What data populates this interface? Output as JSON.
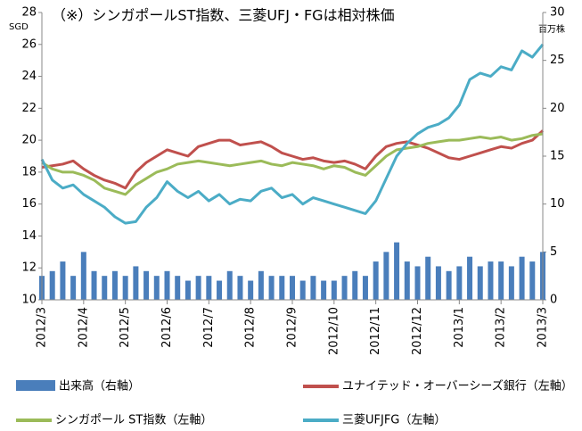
{
  "chart_data": {
    "type": "line",
    "title": "（※）シンガポールST指数、三菱UFJ・FGは相対株価",
    "y_label": "SGD",
    "y2_label": "百万株",
    "categories": [
      "2012/3",
      null,
      null,
      null,
      "2012/4",
      null,
      null,
      null,
      "2012/5",
      null,
      null,
      null,
      "2012/6",
      null,
      null,
      null,
      "2012/7",
      null,
      null,
      null,
      "2012/8",
      null,
      null,
      null,
      "2012/9",
      null,
      null,
      null,
      "2012/10",
      null,
      null,
      null,
      "2012/11",
      null,
      null,
      null,
      "2012/12",
      null,
      null,
      null,
      "2013/1",
      null,
      null,
      null,
      "2013/2",
      null,
      null,
      null,
      "2013/3"
    ],
    "ylim": [
      10,
      28
    ],
    "yticks": [
      10,
      12,
      14,
      16,
      18,
      20,
      22,
      24,
      26,
      28
    ],
    "y2lim": [
      0,
      30
    ],
    "y2ticks": [
      0,
      5,
      10,
      15,
      20,
      25,
      30
    ],
    "series": [
      {
        "name": "出来高（右軸）",
        "type": "bar",
        "axis": "y2",
        "color": "#4a7ebb",
        "values": [
          2.5,
          3,
          4,
          2.5,
          5,
          3,
          2.5,
          3,
          2.5,
          3.5,
          3,
          2.5,
          3,
          2.5,
          2,
          2.5,
          2.5,
          2,
          3,
          2.5,
          2,
          3,
          2.5,
          2.5,
          2.5,
          2,
          2.5,
          2,
          2,
          2.5,
          3,
          2.5,
          4,
          5,
          6,
          4,
          3.5,
          4.5,
          3.5,
          3,
          3.5,
          4.5,
          3.5,
          4,
          4,
          3.5,
          4.5,
          4,
          5
        ]
      },
      {
        "name": "ユナイテッド・オーバーシーズ銀行（左軸）",
        "type": "line",
        "axis": "y",
        "color": "#c0504d",
        "values": [
          18.3,
          18.4,
          18.5,
          18.7,
          18.2,
          17.8,
          17.5,
          17.3,
          17.0,
          18.0,
          18.6,
          19.0,
          19.4,
          19.2,
          19.0,
          19.6,
          19.8,
          20.0,
          20.0,
          19.7,
          19.8,
          19.9,
          19.6,
          19.2,
          19.0,
          18.8,
          18.9,
          18.7,
          18.6,
          18.7,
          18.5,
          18.2,
          19.0,
          19.6,
          19.8,
          19.9,
          19.7,
          19.5,
          19.2,
          18.9,
          18.8,
          19.0,
          19.2,
          19.4,
          19.6,
          19.5,
          19.8,
          20.0,
          20.6
        ]
      },
      {
        "name": "シンガポール ST指数（左軸）",
        "type": "line",
        "axis": "y",
        "color": "#9bbb59",
        "values": [
          18.6,
          18.2,
          18.0,
          18.0,
          17.8,
          17.5,
          17.0,
          16.8,
          16.6,
          17.2,
          17.6,
          18.0,
          18.2,
          18.5,
          18.6,
          18.7,
          18.6,
          18.5,
          18.4,
          18.5,
          18.6,
          18.7,
          18.5,
          18.4,
          18.6,
          18.5,
          18.4,
          18.2,
          18.4,
          18.3,
          18.0,
          17.8,
          18.4,
          19.0,
          19.4,
          19.5,
          19.6,
          19.8,
          19.9,
          20.0,
          20.0,
          20.1,
          20.2,
          20.1,
          20.2,
          20.0,
          20.1,
          20.3,
          20.4
        ]
      },
      {
        "name": "三菱UFJFG（左軸）",
        "type": "line",
        "axis": "y",
        "color": "#4bacc6",
        "values": [
          18.8,
          17.5,
          17.0,
          17.2,
          16.6,
          16.2,
          15.8,
          15.2,
          14.8,
          14.9,
          15.8,
          16.4,
          17.4,
          16.8,
          16.4,
          16.8,
          16.2,
          16.6,
          16.0,
          16.3,
          16.2,
          16.8,
          17.0,
          16.4,
          16.6,
          16.0,
          16.4,
          16.2,
          16.0,
          15.8,
          15.6,
          15.4,
          16.2,
          17.6,
          19.0,
          19.8,
          20.4,
          20.8,
          21.0,
          21.4,
          22.2,
          23.8,
          24.2,
          24.0,
          24.6,
          24.4,
          25.6,
          25.2,
          26.0
        ]
      }
    ]
  }
}
